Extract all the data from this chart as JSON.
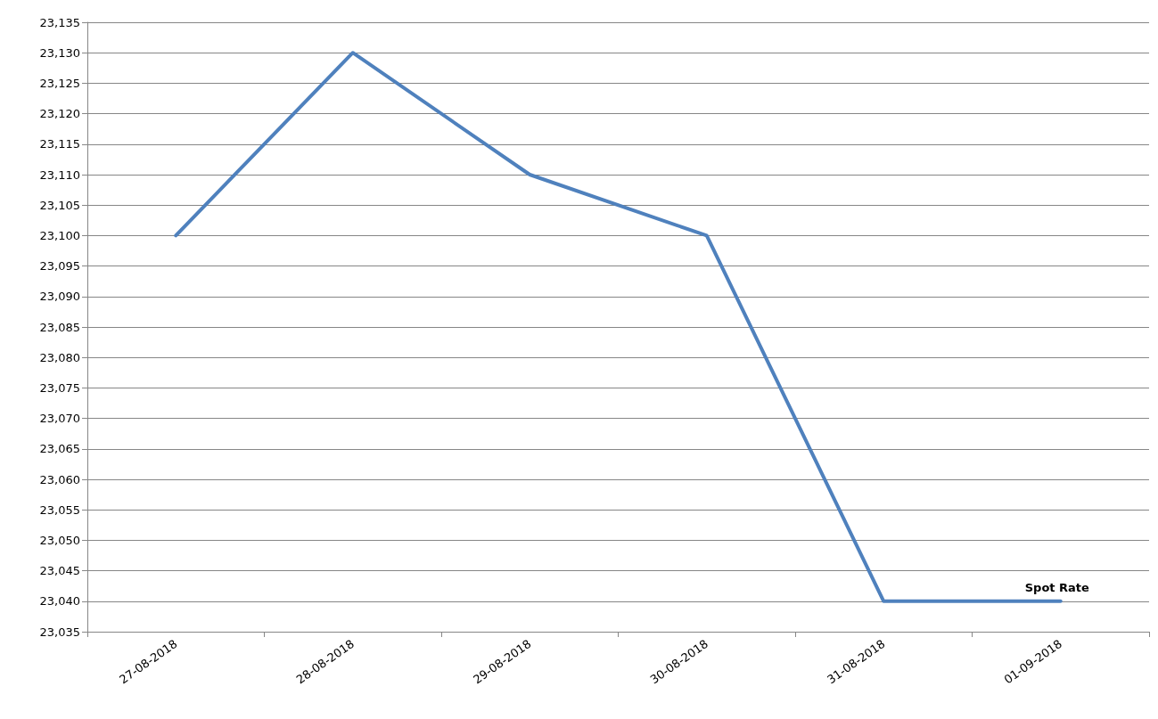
{
  "chart_data": {
    "type": "line",
    "categories": [
      "27-08-2018",
      "28-08-2018",
      "29-08-2018",
      "30-08-2018",
      "31-08-2018",
      "01-09-2018"
    ],
    "series": [
      {
        "name": "Spot Rate",
        "color": "#4f81bd",
        "values": [
          23100,
          23130,
          23110,
          23100,
          23040,
          23040
        ]
      }
    ],
    "ylim": [
      23035,
      23135
    ],
    "yticks": [
      {
        "value": 23035,
        "label": "23,035"
      },
      {
        "value": 23040,
        "label": "23,040"
      },
      {
        "value": 23045,
        "label": "23,045"
      },
      {
        "value": 23050,
        "label": "23,050"
      },
      {
        "value": 23055,
        "label": "23,055"
      },
      {
        "value": 23060,
        "label": "23,060"
      },
      {
        "value": 23065,
        "label": "23,065"
      },
      {
        "value": 23070,
        "label": "23,070"
      },
      {
        "value": 23075,
        "label": "23,075"
      },
      {
        "value": 23080,
        "label": "23,080"
      },
      {
        "value": 23085,
        "label": "23,085"
      },
      {
        "value": 23090,
        "label": "23,090"
      },
      {
        "value": 23095,
        "label": "23,095"
      },
      {
        "value": 23100,
        "label": "23,100"
      },
      {
        "value": 23105,
        "label": "23,105"
      },
      {
        "value": 23110,
        "label": "23,110"
      },
      {
        "value": 23115,
        "label": "23,115"
      },
      {
        "value": 23120,
        "label": "23,120"
      },
      {
        "value": 23125,
        "label": "23,125"
      },
      {
        "value": 23130,
        "label": "23,130"
      },
      {
        "value": 23135,
        "label": "23,135"
      }
    ],
    "grid": "y",
    "marker": "none",
    "line_style": "solid"
  }
}
